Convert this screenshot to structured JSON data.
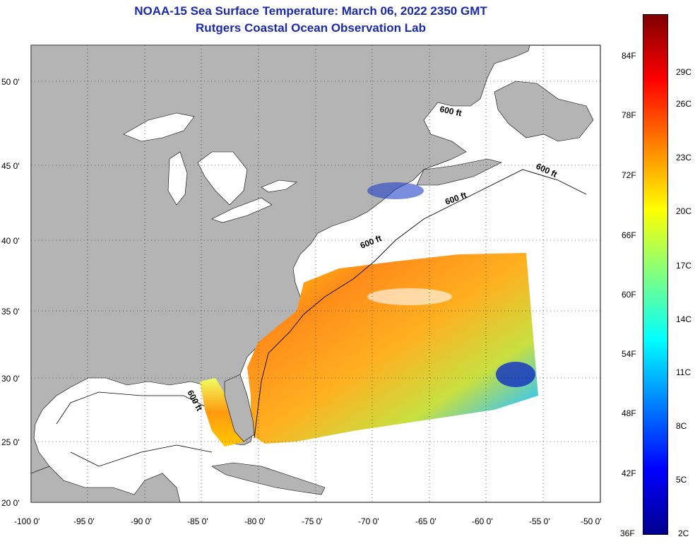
{
  "title": "NOAA-15 Sea Surface Temperature:  March 06, 2022 2350 GMT",
  "subtitle": "Rutgers Coastal Ocean Observation Lab",
  "lat_ticks": [
    {
      "value": 50,
      "label": "50 0'"
    },
    {
      "value": 45,
      "label": "45 0'"
    },
    {
      "value": 40,
      "label": "40 0'"
    },
    {
      "value": 35,
      "label": "35 0'"
    },
    {
      "value": 30,
      "label": "30 0'"
    },
    {
      "value": 25,
      "label": "25 0'"
    },
    {
      "value": 20,
      "label": "20 0'"
    }
  ],
  "lon_ticks": [
    {
      "value": -100,
      "label": "-100 0'"
    },
    {
      "value": -95,
      "label": "-95 0'"
    },
    {
      "value": -90,
      "label": "-90 0'"
    },
    {
      "value": -85,
      "label": "-85 0'"
    },
    {
      "value": -80,
      "label": "-80 0'"
    },
    {
      "value": -75,
      "label": "-75 0'"
    },
    {
      "value": -70,
      "label": "-70 0'"
    },
    {
      "value": -65,
      "label": "-65 0'"
    },
    {
      "value": -60,
      "label": "-60 0'"
    },
    {
      "value": -55,
      "label": "-55 0'"
    },
    {
      "value": -50,
      "label": "-50 0'"
    }
  ],
  "depth_labels": [
    "600 ft",
    "600 ft",
    "600 ft",
    "600 ft",
    "600 ft"
  ],
  "colorbar": {
    "fahrenheit": [
      "84F",
      "78F",
      "72F",
      "66F",
      "60F",
      "54F",
      "48F",
      "42F",
      "36F"
    ],
    "celsius": [
      "29C",
      "26C",
      "23C",
      "20C",
      "17C",
      "14C",
      "11C",
      "8C",
      "5C",
      "2C"
    ],
    "colors": [
      "#7f0000",
      "#ff0000",
      "#ff8000",
      "#ffff00",
      "#80ff80",
      "#00ffff",
      "#0080ff",
      "#0000ff",
      "#00008f"
    ]
  },
  "colors": {
    "land": "#b4b4b4",
    "title": "#1a2aa8"
  }
}
